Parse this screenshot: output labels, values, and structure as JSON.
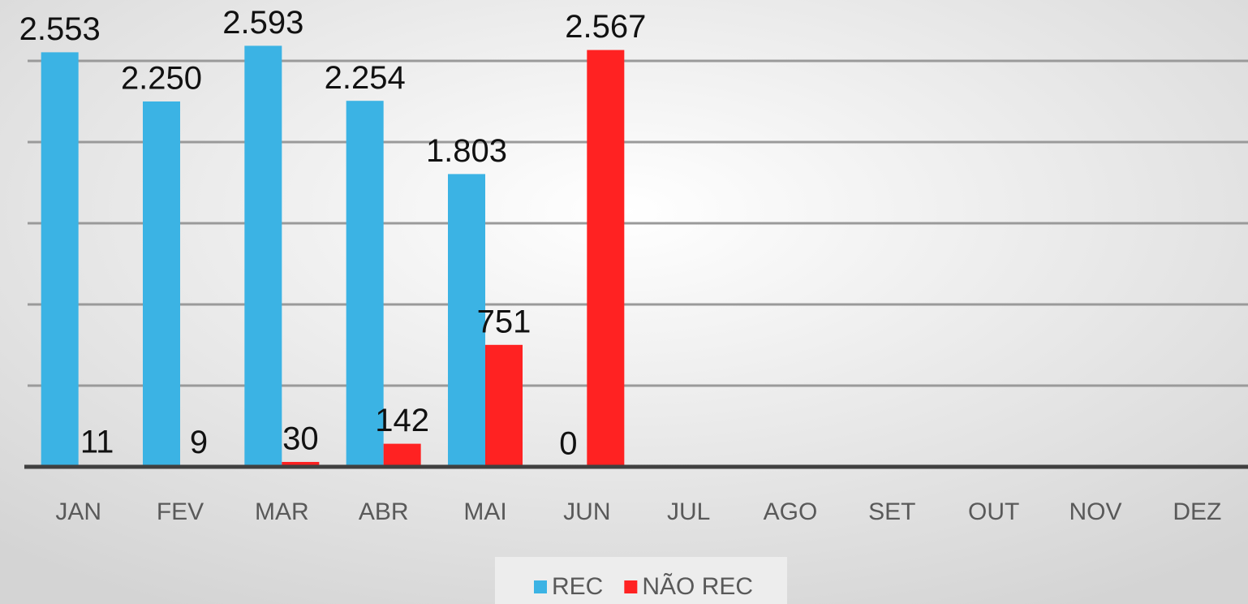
{
  "chart_data": {
    "type": "bar",
    "categories": [
      "JAN",
      "FEV",
      "MAR",
      "ABR",
      "MAI",
      "JUN",
      "JUL",
      "AGO",
      "SET",
      "OUT",
      "NOV",
      "DEZ"
    ],
    "series": [
      {
        "name": "REC",
        "color": "#3bb3e4",
        "values": [
          2553,
          2250,
          2593,
          2254,
          1803,
          0,
          null,
          null,
          null,
          null,
          null,
          null
        ],
        "value_labels": [
          "2.553",
          "2.250",
          "2.593",
          "2.254",
          "1.803",
          "0",
          null,
          null,
          null,
          null,
          null,
          null
        ]
      },
      {
        "name": "NÃO REC",
        "color": "#ff2222",
        "values": [
          11,
          9,
          30,
          142,
          751,
          2567,
          null,
          null,
          null,
          null,
          null,
          null
        ],
        "value_labels": [
          "11",
          "9",
          "30",
          "142",
          "751",
          "2.567",
          null,
          null,
          null,
          null,
          null,
          null
        ]
      }
    ],
    "ylim": [
      0,
      2875
    ],
    "yticks": [
      0,
      500,
      1000,
      1500,
      2000,
      2500
    ],
    "grid": true,
    "legend": "bottom"
  }
}
